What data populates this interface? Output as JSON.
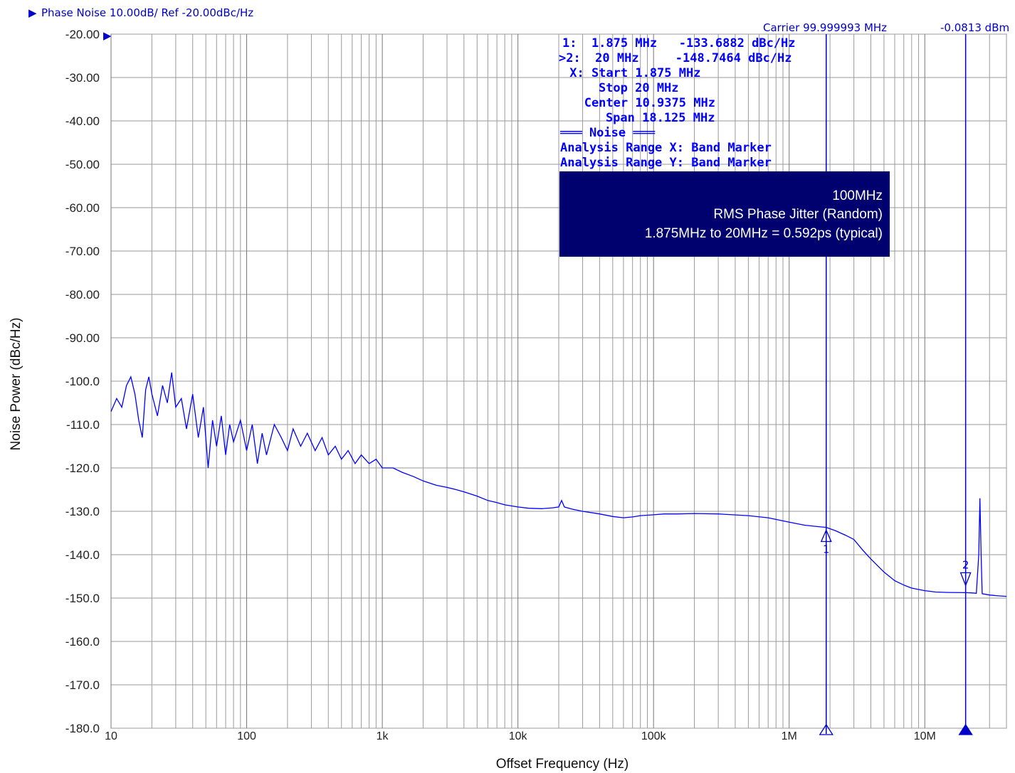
{
  "header": {
    "title": "Phase Noise 10.00dB/ Ref -20.00dBc/Hz",
    "carrier": "Carrier 99.999993 MHz",
    "power": "-0.0813 dBm"
  },
  "markers_readout": [
    "1:  1.875 MHz   -133.6882 dBc/Hz",
    ">2:  20 MHz     -148.7464 dBc/Hz",
    " X: Start 1.875 MHz",
    "    Stop 20 MHz",
    "   Center 10.9375 MHz",
    "    Span 18.125 MHz",
    "═══ Noise ═══",
    "Analysis Range X: Band Marker",
    "Analysis Range Y: Band Marker"
  ],
  "annotation_box": {
    "line1": "100MHz",
    "line2": "RMS Phase Jitter (Random)",
    "line3": "1.875MHz to 20MHz = 0.592ps (typical)",
    "background": "#00006e"
  },
  "chart_data": {
    "type": "line",
    "xlabel": "Offset Frequency (Hz)",
    "ylabel": "Noise Power (dBc/Hz)",
    "xscale": "log",
    "xlim": [
      10,
      40000000
    ],
    "ylim": [
      -180,
      -20
    ],
    "x_ticks": [
      {
        "value": 10,
        "label": "10"
      },
      {
        "value": 100,
        "label": "100"
      },
      {
        "value": 1000,
        "label": "1k"
      },
      {
        "value": 10000,
        "label": "10k"
      },
      {
        "value": 100000,
        "label": "100k"
      },
      {
        "value": 1000000,
        "label": "1M"
      },
      {
        "value": 10000000,
        "label": "10M"
      }
    ],
    "y_ticks": [
      {
        "value": -20,
        "label": "-20.00"
      },
      {
        "value": -30,
        "label": "-30.00"
      },
      {
        "value": -40,
        "label": "-40.00"
      },
      {
        "value": -50,
        "label": "-50.00"
      },
      {
        "value": -60,
        "label": "-60.00"
      },
      {
        "value": -70,
        "label": "-70.00"
      },
      {
        "value": -80,
        "label": "-80.00"
      },
      {
        "value": -90,
        "label": "-90.00"
      },
      {
        "value": -100,
        "label": "-100.0"
      },
      {
        "value": -110,
        "label": "-110.0"
      },
      {
        "value": -120,
        "label": "-120.0"
      },
      {
        "value": -130,
        "label": "-130.0"
      },
      {
        "value": -140,
        "label": "-140.0"
      },
      {
        "value": -150,
        "label": "-150.0"
      },
      {
        "value": -160,
        "label": "-160.0"
      },
      {
        "value": -170,
        "label": "-170.0"
      },
      {
        "value": -180,
        "label": "-180.0"
      }
    ],
    "grid": true,
    "line_color": "#0000ff",
    "series": [
      {
        "points": [
          [
            10,
            -107
          ],
          [
            11,
            -104
          ],
          [
            12,
            -106
          ],
          [
            13,
            -101
          ],
          [
            14,
            -99
          ],
          [
            15,
            -103
          ],
          [
            16,
            -109
          ],
          [
            17,
            -113
          ],
          [
            18,
            -102
          ],
          [
            19,
            -99
          ],
          [
            20,
            -103
          ],
          [
            22,
            -108
          ],
          [
            24,
            -101
          ],
          [
            26,
            -105
          ],
          [
            28,
            -98
          ],
          [
            30,
            -106
          ],
          [
            33,
            -104
          ],
          [
            36,
            -111
          ],
          [
            40,
            -103
          ],
          [
            44,
            -113
          ],
          [
            48,
            -106
          ],
          [
            52,
            -120
          ],
          [
            56,
            -109
          ],
          [
            60,
            -115
          ],
          [
            65,
            -108
          ],
          [
            70,
            -117
          ],
          [
            75,
            -110
          ],
          [
            80,
            -114
          ],
          [
            90,
            -109
          ],
          [
            100,
            -116
          ],
          [
            110,
            -110
          ],
          [
            120,
            -119
          ],
          [
            130,
            -112
          ],
          [
            140,
            -117
          ],
          [
            160,
            -110
          ],
          [
            180,
            -113
          ],
          [
            200,
            -116
          ],
          [
            220,
            -111
          ],
          [
            250,
            -115
          ],
          [
            280,
            -112
          ],
          [
            320,
            -116
          ],
          [
            360,
            -113
          ],
          [
            400,
            -117
          ],
          [
            450,
            -115
          ],
          [
            500,
            -118
          ],
          [
            560,
            -116
          ],
          [
            630,
            -119
          ],
          [
            700,
            -117
          ],
          [
            800,
            -119
          ],
          [
            900,
            -118
          ],
          [
            1000,
            -120
          ],
          [
            1200,
            -120
          ],
          [
            1400,
            -121
          ],
          [
            1700,
            -122
          ],
          [
            2000,
            -123
          ],
          [
            2500,
            -124
          ],
          [
            3000,
            -124.5
          ],
          [
            3500,
            -125
          ],
          [
            4000,
            -125.5
          ],
          [
            5000,
            -126.5
          ],
          [
            6000,
            -127.5
          ],
          [
            7000,
            -128
          ],
          [
            8000,
            -128.5
          ],
          [
            10000,
            -129
          ],
          [
            12000,
            -129.3
          ],
          [
            15000,
            -129.4
          ],
          [
            18000,
            -129.2
          ],
          [
            20000,
            -129
          ],
          [
            21000,
            -127.5
          ],
          [
            22000,
            -129
          ],
          [
            25000,
            -129.5
          ],
          [
            30000,
            -130
          ],
          [
            40000,
            -130.6
          ],
          [
            50000,
            -131.2
          ],
          [
            60000,
            -131.5
          ],
          [
            70000,
            -131.3
          ],
          [
            80000,
            -131
          ],
          [
            100000,
            -130.8
          ],
          [
            120000,
            -130.6
          ],
          [
            150000,
            -130.6
          ],
          [
            200000,
            -130.5
          ],
          [
            300000,
            -130.6
          ],
          [
            500000,
            -131
          ],
          [
            700000,
            -131.5
          ],
          [
            1000000,
            -132.5
          ],
          [
            1300000,
            -133.2
          ],
          [
            1600000,
            -133.5
          ],
          [
            1875000,
            -133.7
          ],
          [
            2200000,
            -134.5
          ],
          [
            2600000,
            -135.5
          ],
          [
            3000000,
            -136.5
          ],
          [
            3500000,
            -139
          ],
          [
            4000000,
            -141
          ],
          [
            5000000,
            -144
          ],
          [
            6000000,
            -146
          ],
          [
            7000000,
            -147
          ],
          [
            8000000,
            -147.7
          ],
          [
            10000000,
            -148.3
          ],
          [
            12000000,
            -148.6
          ],
          [
            15000000,
            -148.7
          ],
          [
            20000000,
            -148.75
          ],
          [
            22000000,
            -148.8
          ],
          [
            24000000,
            -148.9
          ],
          [
            25000000,
            -140
          ],
          [
            25500000,
            -127
          ],
          [
            26000000,
            -140
          ],
          [
            26500000,
            -149
          ],
          [
            30000000,
            -149.3
          ],
          [
            35000000,
            -149.5
          ],
          [
            40000000,
            -149.6
          ]
        ]
      }
    ],
    "markers": [
      {
        "id": "1",
        "x": 1875000,
        "y": -133.6882
      },
      {
        "id": "2",
        "x": 20000000,
        "y": -148.7464
      }
    ]
  }
}
